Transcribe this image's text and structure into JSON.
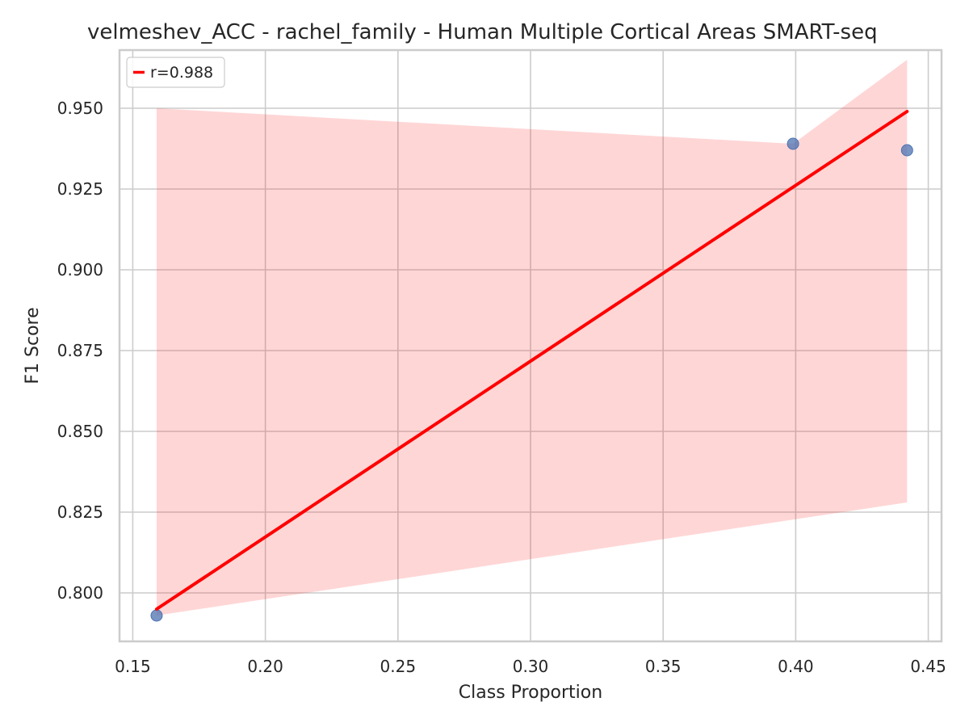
{
  "chart_data": {
    "type": "scatter",
    "title": "velmeshev_ACC - rachel_family - Human Multiple Cortical Areas SMART-seq",
    "xlabel": "Class Proportion",
    "ylabel": "F1 Score",
    "xlim": [
      0.145,
      0.455
    ],
    "ylim": [
      0.785,
      0.968
    ],
    "xticks": [
      0.15,
      0.2,
      0.25,
      0.3,
      0.35,
      0.4,
      0.45
    ],
    "xtick_labels": [
      "0.15",
      "0.20",
      "0.25",
      "0.30",
      "0.35",
      "0.40",
      "0.45"
    ],
    "yticks": [
      0.8,
      0.825,
      0.85,
      0.875,
      0.9,
      0.925,
      0.95
    ],
    "ytick_labels": [
      "0.800",
      "0.825",
      "0.850",
      "0.875",
      "0.900",
      "0.925",
      "0.950"
    ],
    "grid": true,
    "legend_position": "top-left",
    "series": [
      {
        "kind": "points",
        "color": "#4c72b0",
        "points": [
          {
            "x": 0.159,
            "y": 0.793
          },
          {
            "x": 0.399,
            "y": 0.939
          },
          {
            "x": 0.442,
            "y": 0.937
          }
        ]
      },
      {
        "kind": "regression-line",
        "name": "r=0.988",
        "color": "#ff0000",
        "points": [
          {
            "x": 0.159,
            "y": 0.795
          },
          {
            "x": 0.442,
            "y": 0.949
          }
        ]
      }
    ],
    "confidence_band": {
      "color": "#ff0000",
      "upper": [
        {
          "x": 0.159,
          "y": 0.95
        },
        {
          "x": 0.399,
          "y": 0.939
        },
        {
          "x": 0.442,
          "y": 0.965
        }
      ],
      "lower": [
        {
          "x": 0.159,
          "y": 0.793
        },
        {
          "x": 0.442,
          "y": 0.828
        }
      ]
    }
  }
}
